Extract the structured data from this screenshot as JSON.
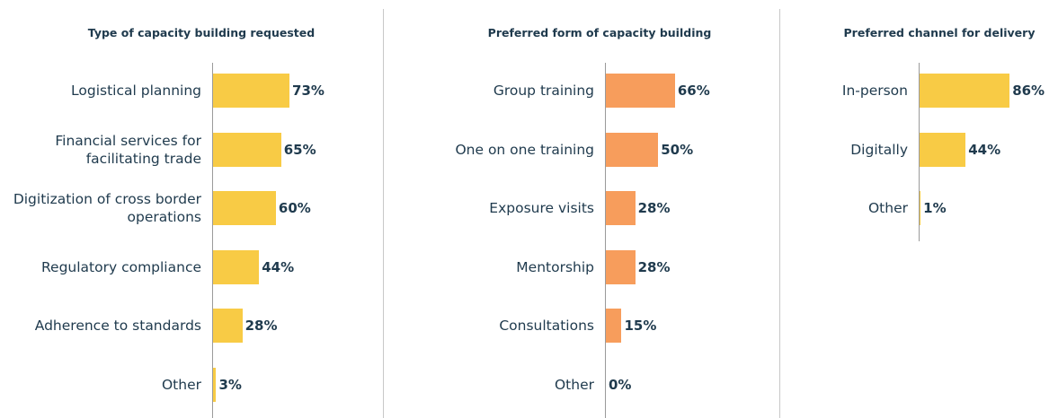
{
  "chart_data": [
    {
      "type": "bar",
      "orientation": "horizontal",
      "title": "Type of capacity building requested",
      "categories": [
        "Logistical planning",
        "Financial services for facilitating trade",
        "Digitization of cross border operations",
        "Regulatory compliance",
        "Adherence to standards",
        "Other"
      ],
      "values": [
        73,
        65,
        60,
        44,
        28,
        3
      ],
      "value_labels": [
        "73%",
        "65%",
        "60%",
        "44%",
        "28%",
        "3%"
      ],
      "color": "#f8cb45"
    },
    {
      "type": "bar",
      "orientation": "horizontal",
      "title": "Preferred form of capacity building",
      "categories": [
        "Group training",
        "One on one training",
        "Exposure visits",
        "Mentorship",
        "Consultations",
        "Other"
      ],
      "values": [
        66,
        50,
        28,
        28,
        15,
        0
      ],
      "value_labels": [
        "66%",
        "50%",
        "28%",
        "28%",
        "15%",
        "0%"
      ],
      "color": "#f79d5c"
    },
    {
      "type": "bar",
      "orientation": "horizontal",
      "title": "Preferred channel for delivery",
      "categories": [
        "In-person",
        "Digitally",
        "Other"
      ],
      "values": [
        86,
        44,
        1
      ],
      "value_labels": [
        "86%",
        "44%",
        "1%"
      ],
      "color": "#f8cb45"
    }
  ]
}
